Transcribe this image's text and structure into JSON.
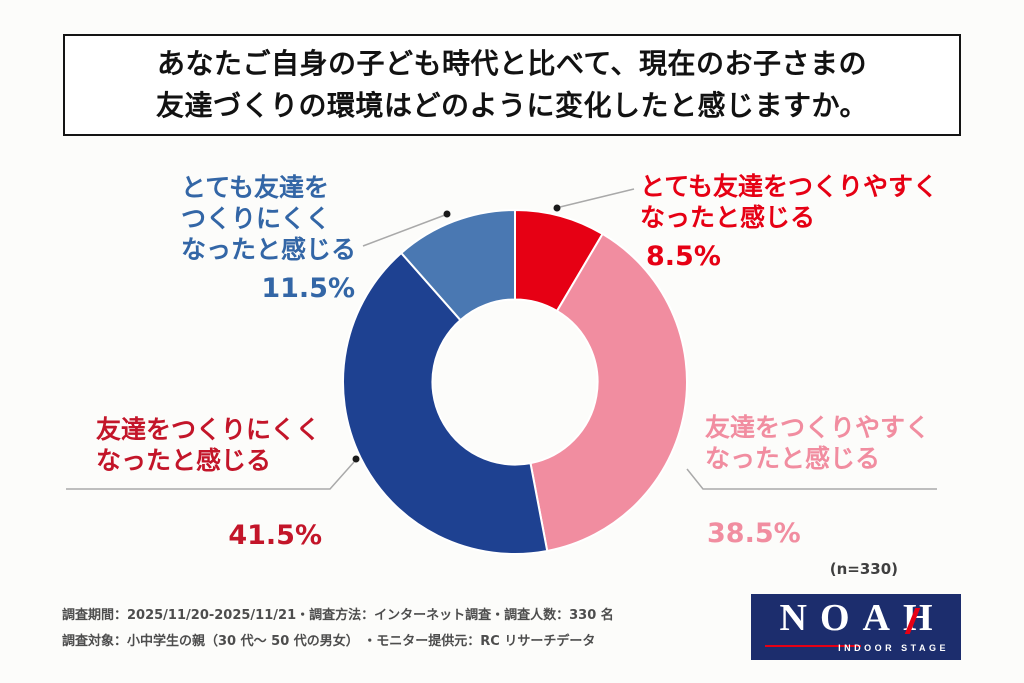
{
  "title": {
    "line1": "あなたご自身の子ども時代と比べて、現在のお子さまの",
    "line2": "友達づくりの環境はどのように変化したと感じますか。"
  },
  "chart_data": {
    "type": "pie",
    "subtype": "donut",
    "title": "あなたご自身の子ども時代と比べて、現在のお子さまの友達づくりの環境はどのように変化したと感じますか。",
    "start_angle_deg": 0,
    "direction": "clockwise",
    "inner_radius_ratio": 0.48,
    "sample_note": "(n=330)",
    "segments": [
      {
        "label": "とても友達をつくりやすくなったと感じる",
        "value": 8.5,
        "unit": "%",
        "color": "#e60014"
      },
      {
        "label": "友達をつくりやすくなったと感じる",
        "value": 38.5,
        "unit": "%",
        "color": "#f18da0"
      },
      {
        "label": "友達をつくりにくくなったと感じる",
        "value": 41.5,
        "unit": "%",
        "color": "#1e4191"
      },
      {
        "label": "とても友達をつくりにくくなったと感じる",
        "value": 11.5,
        "unit": "%",
        "color": "#4a78b2"
      }
    ]
  },
  "callouts": {
    "top_left": {
      "lines": [
        "とても友達を",
        "つくりにくく",
        "なったと感じる"
      ],
      "pct": "11.5%",
      "color": "#3366a6"
    },
    "top_right": {
      "lines": [
        "とても友達をつくりやすく",
        "なったと感じる"
      ],
      "pct": "8.5%",
      "color": "#e60014"
    },
    "left": {
      "lines": [
        "友達をつくりにくく",
        "なったと感じる"
      ],
      "pct": "41.5%",
      "color": "#c31529"
    },
    "right": {
      "lines": [
        "友達をつくりやすく",
        "なったと感じる"
      ],
      "pct": "38.5%",
      "color": "#f18da0"
    }
  },
  "note": "(n=330)",
  "footer": {
    "line1": "調査期間：2025/11/20-2025/11/21・調査方法：インターネット調査・調査人数：330 名",
    "line2": "調査対象：小中学生の親（30 代～ 50 代の男女） ・モニター提供元：RC リサーチデータ"
  },
  "logo": {
    "word": "NOAH",
    "subtitle": "INDOOR STAGE",
    "bg_color": "#1c2d6d",
    "accent_color": "#e60014"
  }
}
